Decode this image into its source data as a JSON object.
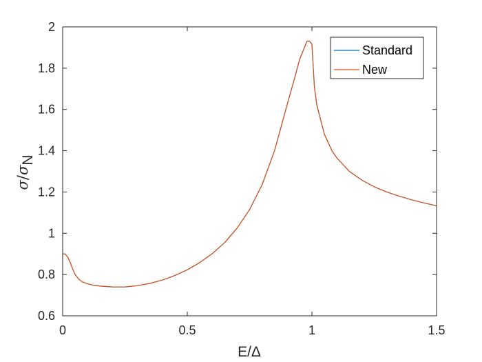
{
  "chart_data": {
    "type": "line",
    "title": "",
    "xlabel": "E/Δ",
    "ylabel": "σ/σN",
    "xlim": [
      0,
      1.5
    ],
    "ylim": [
      0.6,
      2
    ],
    "x_ticks": [
      "0",
      "0.5",
      "1",
      "1.5"
    ],
    "x_tick_values": [
      0,
      0.5,
      1,
      1.5
    ],
    "y_ticks": [
      "0.6",
      "0.8",
      "1",
      "1.2",
      "1.4",
      "1.6",
      "1.8",
      "2"
    ],
    "y_tick_values": [
      0.6,
      0.8,
      1,
      1.2,
      1.4,
      1.6,
      1.8,
      2
    ],
    "grid": false,
    "legend_position": "top-right",
    "series": [
      {
        "name": "Standard",
        "color": "#0072BD",
        "x": [
          0,
          0.01,
          0.02,
          0.03,
          0.04,
          0.05,
          0.06,
          0.07,
          0.08,
          0.1,
          0.12,
          0.15,
          0.2,
          0.25,
          0.3,
          0.35,
          0.4,
          0.45,
          0.5,
          0.55,
          0.6,
          0.65,
          0.7,
          0.75,
          0.8,
          0.85,
          0.9,
          0.93,
          0.95,
          0.97,
          0.98,
          0.99,
          0.995,
          1.0,
          1.01,
          1.02,
          1.05,
          1.08,
          1.1,
          1.15,
          1.2,
          1.25,
          1.3,
          1.35,
          1.4,
          1.45,
          1.5
        ],
        "y": [
          0.9,
          0.9,
          0.885,
          0.86,
          0.827,
          0.8,
          0.785,
          0.772,
          0.764,
          0.755,
          0.749,
          0.744,
          0.74,
          0.74,
          0.746,
          0.757,
          0.773,
          0.795,
          0.823,
          0.858,
          0.901,
          0.955,
          1.025,
          1.115,
          1.235,
          1.4,
          1.62,
          1.75,
          1.84,
          1.9,
          1.93,
          1.93,
          1.925,
          1.915,
          1.71,
          1.62,
          1.48,
          1.4,
          1.365,
          1.3,
          1.258,
          1.225,
          1.2,
          1.18,
          1.162,
          1.147,
          1.133
        ]
      },
      {
        "name": "New",
        "color": "#D95319",
        "x": [
          0,
          0.01,
          0.02,
          0.03,
          0.04,
          0.05,
          0.06,
          0.07,
          0.08,
          0.1,
          0.12,
          0.15,
          0.2,
          0.25,
          0.3,
          0.35,
          0.4,
          0.45,
          0.5,
          0.55,
          0.6,
          0.65,
          0.7,
          0.75,
          0.8,
          0.85,
          0.9,
          0.93,
          0.95,
          0.97,
          0.98,
          0.99,
          0.995,
          1.0,
          1.01,
          1.02,
          1.05,
          1.08,
          1.1,
          1.15,
          1.2,
          1.25,
          1.3,
          1.35,
          1.4,
          1.45,
          1.5
        ],
        "y": [
          0.9,
          0.9,
          0.885,
          0.86,
          0.827,
          0.8,
          0.785,
          0.772,
          0.764,
          0.755,
          0.749,
          0.744,
          0.74,
          0.74,
          0.746,
          0.757,
          0.773,
          0.795,
          0.823,
          0.858,
          0.901,
          0.955,
          1.025,
          1.115,
          1.235,
          1.4,
          1.62,
          1.75,
          1.84,
          1.9,
          1.93,
          1.93,
          1.925,
          1.915,
          1.71,
          1.62,
          1.48,
          1.4,
          1.365,
          1.3,
          1.258,
          1.225,
          1.2,
          1.18,
          1.162,
          1.147,
          1.133
        ]
      }
    ]
  }
}
